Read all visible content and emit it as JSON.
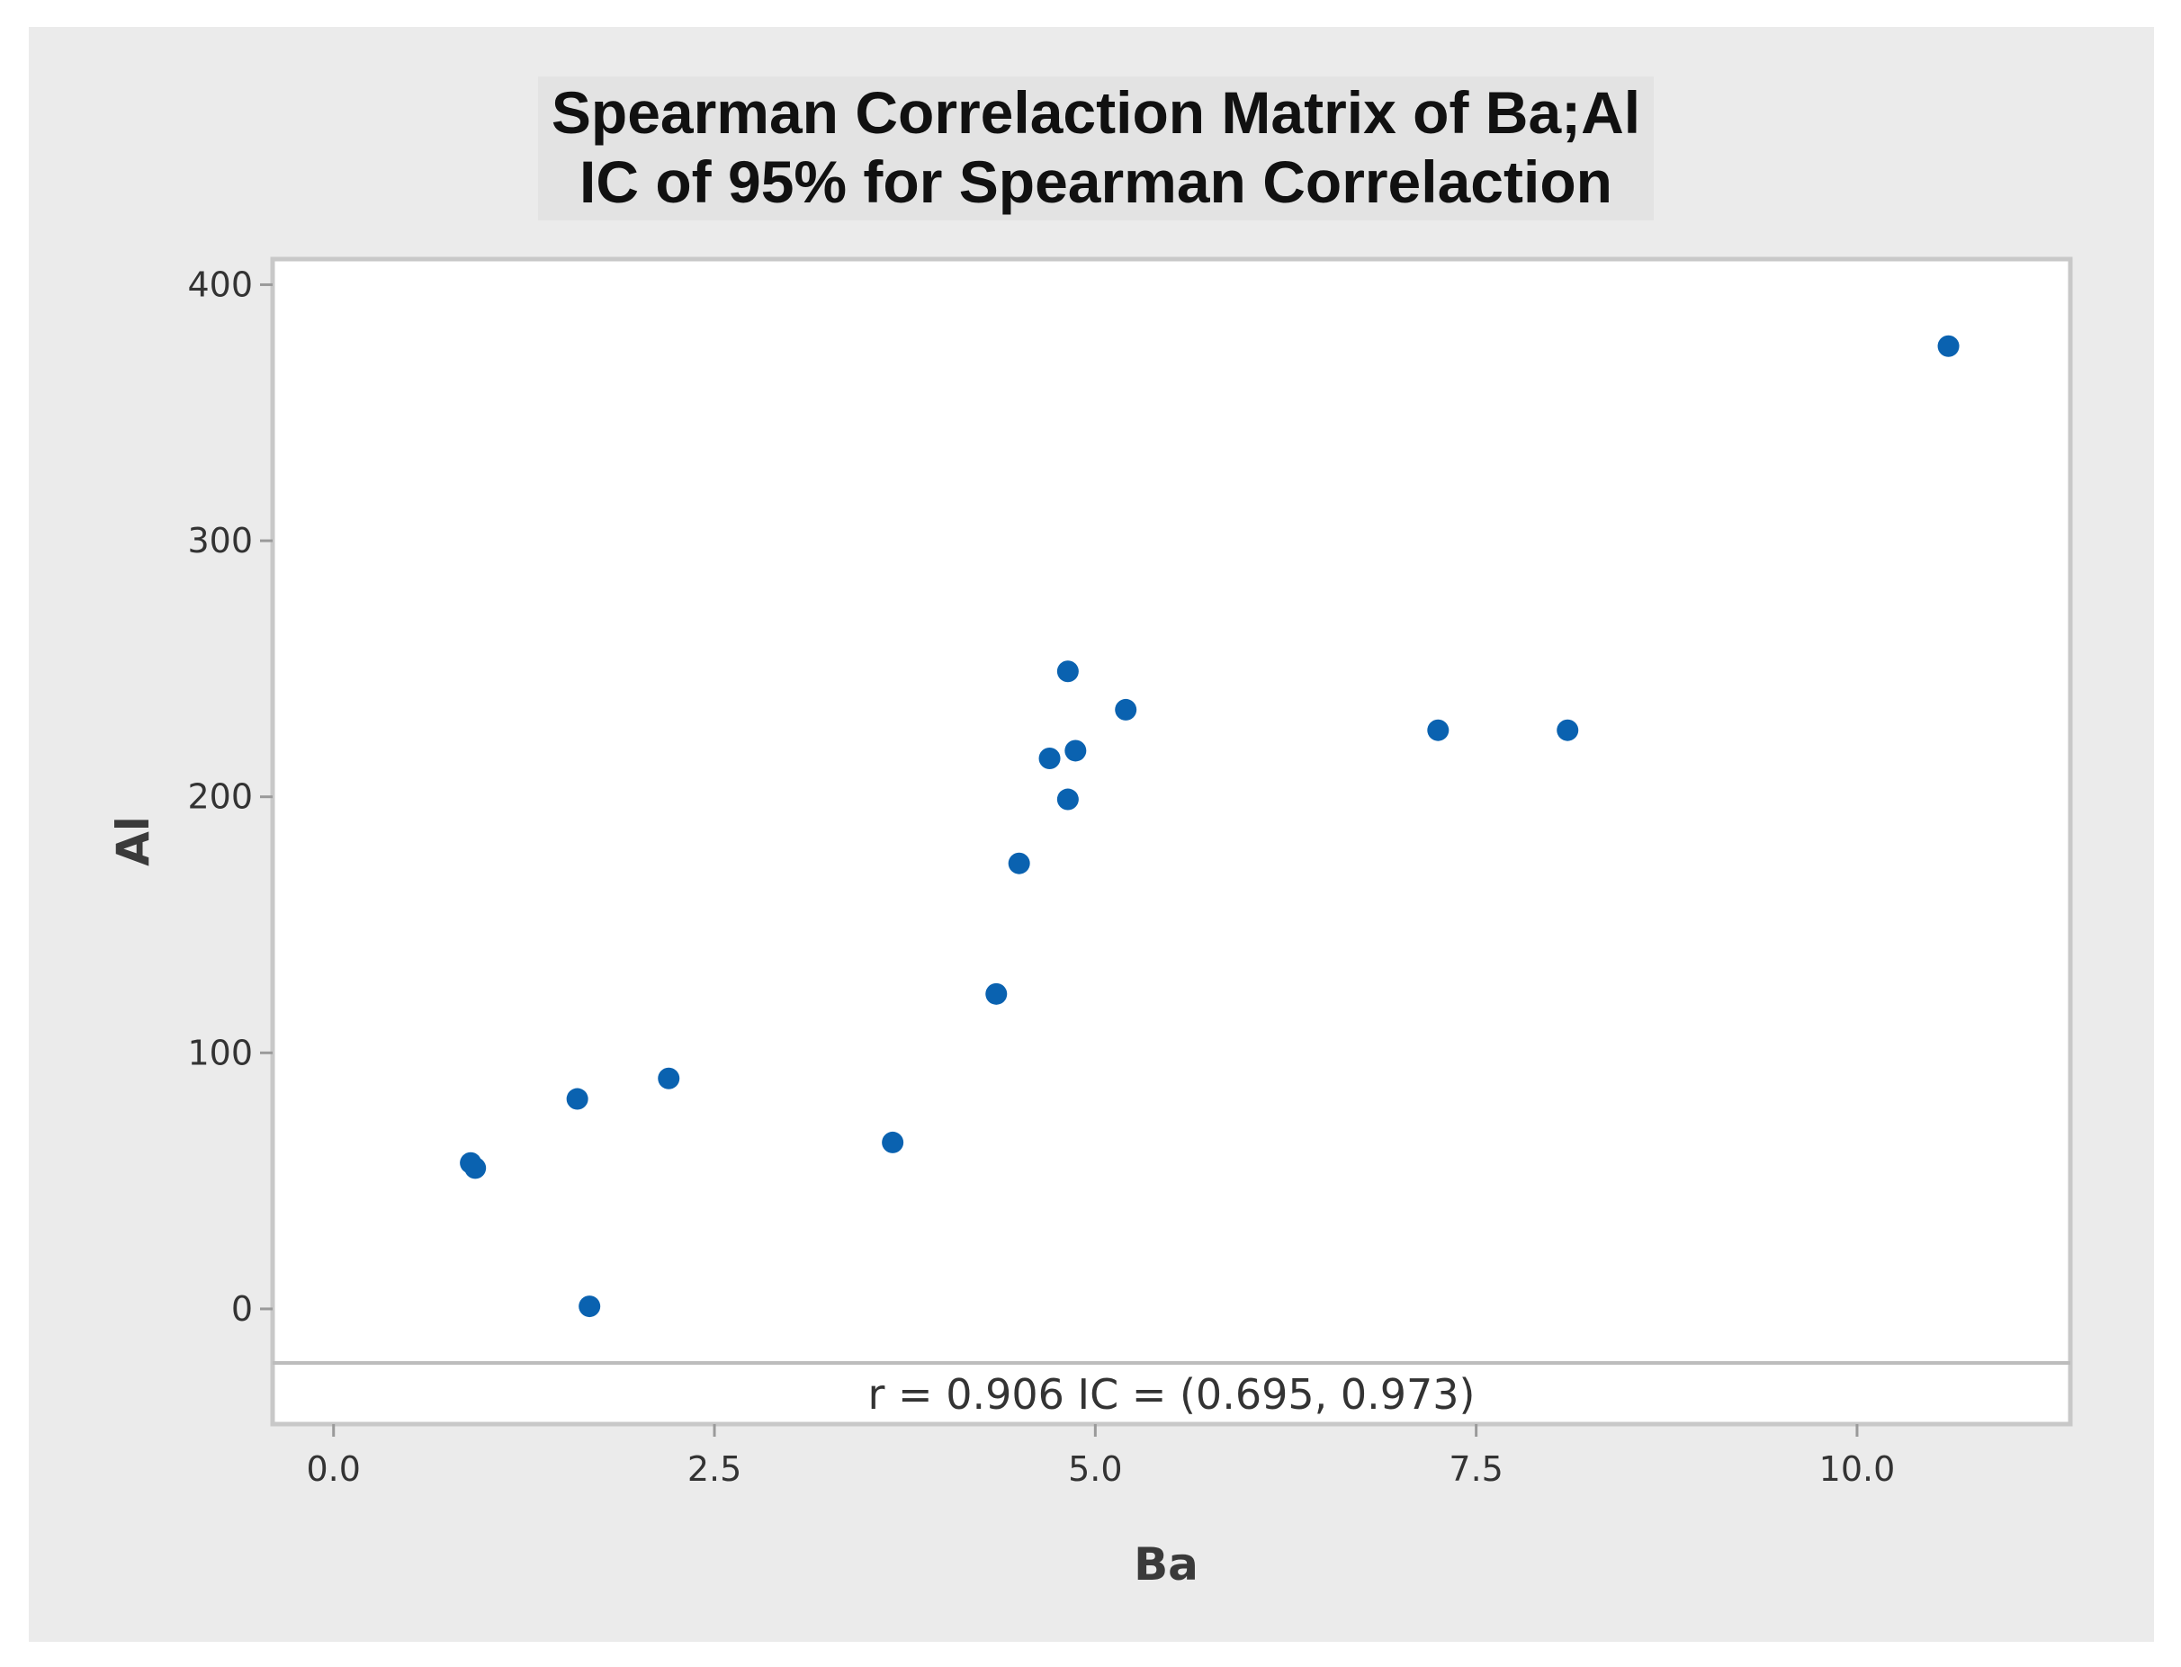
{
  "chart_data": {
    "type": "scatter",
    "title": "Spearman Correlaction Matrix of Ba;Al",
    "subtitle": "IC of 95% for Spearman Correlaction",
    "xlabel": "Ba",
    "ylabel": "Al",
    "xlim": [
      -0.4,
      11.4
    ],
    "ylim": [
      -45,
      410
    ],
    "x_ticks": [
      0.0,
      2.5,
      5.0,
      7.5,
      10.0
    ],
    "x_tick_labels": [
      "0.0",
      "2.5",
      "5.0",
      "7.5",
      "10.0"
    ],
    "y_ticks": [
      0,
      100,
      200,
      300,
      400
    ],
    "y_tick_labels": [
      "0",
      "100",
      "200",
      "300",
      "400"
    ],
    "grid": false,
    "marker_color": "#0a62b0",
    "annotation": "r = 0.906  IC = (0.695, 0.973)",
    "points": [
      {
        "x": 0.9,
        "y": 57
      },
      {
        "x": 0.93,
        "y": 55
      },
      {
        "x": 1.6,
        "y": 82
      },
      {
        "x": 1.68,
        "y": 1
      },
      {
        "x": 2.2,
        "y": 90
      },
      {
        "x": 3.67,
        "y": 65
      },
      {
        "x": 4.35,
        "y": 123
      },
      {
        "x": 4.5,
        "y": 174
      },
      {
        "x": 4.7,
        "y": 215
      },
      {
        "x": 4.82,
        "y": 249
      },
      {
        "x": 4.82,
        "y": 199
      },
      {
        "x": 4.87,
        "y": 218
      },
      {
        "x": 5.2,
        "y": 234
      },
      {
        "x": 7.25,
        "y": 226
      },
      {
        "x": 8.1,
        "y": 226
      },
      {
        "x": 10.6,
        "y": 376
      }
    ]
  }
}
